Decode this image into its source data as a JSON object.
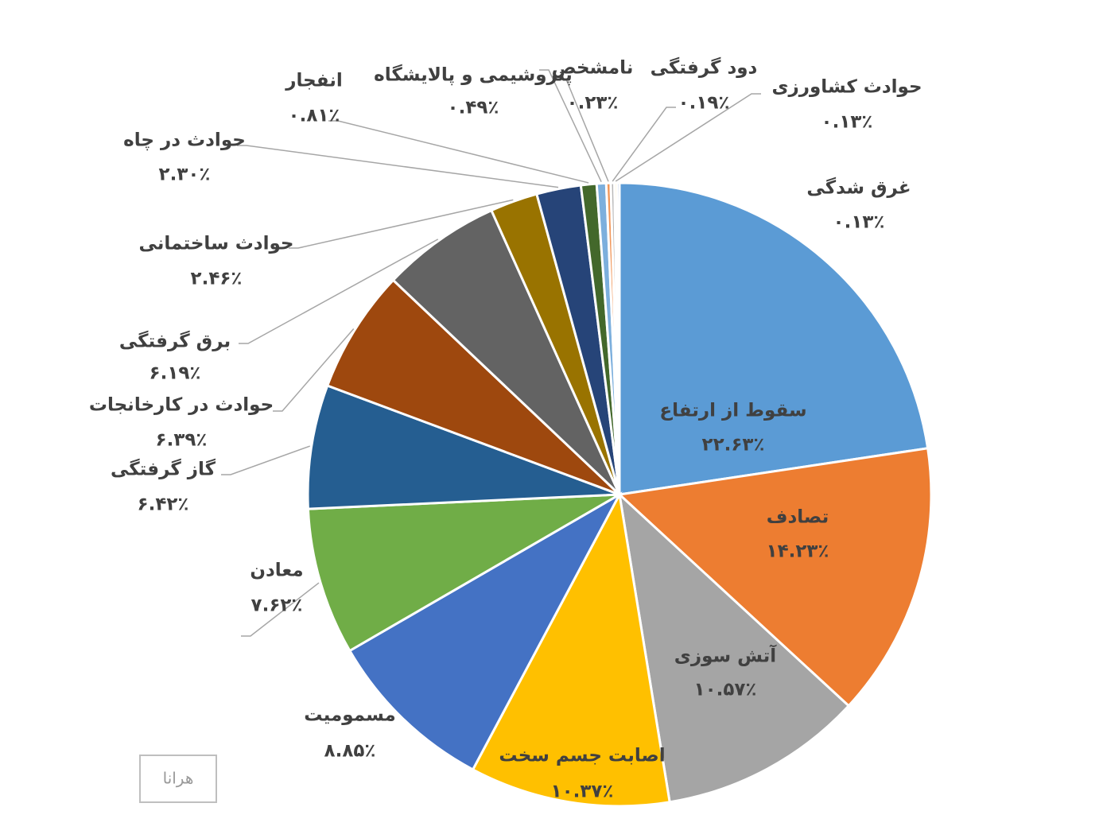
{
  "chart_data": {
    "type": "pie",
    "categories": [
      "سقوط از ارتفاع",
      "تصادف",
      "آتش سوزی",
      "اصابت جسم سخت",
      "مسمومیت",
      "معادن",
      "گاز گرفتگی",
      "حوادث در کارخانجات",
      "برق گرفتگی",
      "حوادث ساختمانی",
      "حوادث در چاه",
      "انفجار",
      "پتروشیمی و پالایشگاه",
      "نامشخص",
      "دود گرفتگی",
      "حوادث کشاورزی",
      "غرق شدگی"
    ],
    "values": [
      22.63,
      14.23,
      10.57,
      10.37,
      8.85,
      7.62,
      6.42,
      6.39,
      6.19,
      2.46,
      2.3,
      0.81,
      0.49,
      0.23,
      0.19,
      0.13,
      0.13
    ],
    "value_labels": [
      "۲۲.۶۳٪",
      "۱۴.۲۳٪",
      "۱۰.۵۷٪",
      "۱۰.۳۷٪",
      "۸.۸۵٪",
      "۷.۶۲٪",
      "۶.۴۲٪",
      "۶.۳۹٪",
      "۶.۱۹٪",
      "۲.۴۶٪",
      "۲.۳۰٪",
      "۰.۸۱٪",
      "۰.۴۹٪",
      "۰.۲۳٪",
      "۰.۱۹٪",
      "۰.۱۳٪",
      "۰.۱۳٪"
    ],
    "colors": [
      "#5b9bd5",
      "#ed7d31",
      "#a5a5a5",
      "#ffc000",
      "#4472c4",
      "#70ad47",
      "#255e91",
      "#9e480e",
      "#636363",
      "#997300",
      "#264478",
      "#43682b",
      "#7cafdd",
      "#f1975a",
      "#b7b7b7",
      "#ffcd33",
      "#698ed0"
    ],
    "watermark": "هرانا"
  }
}
